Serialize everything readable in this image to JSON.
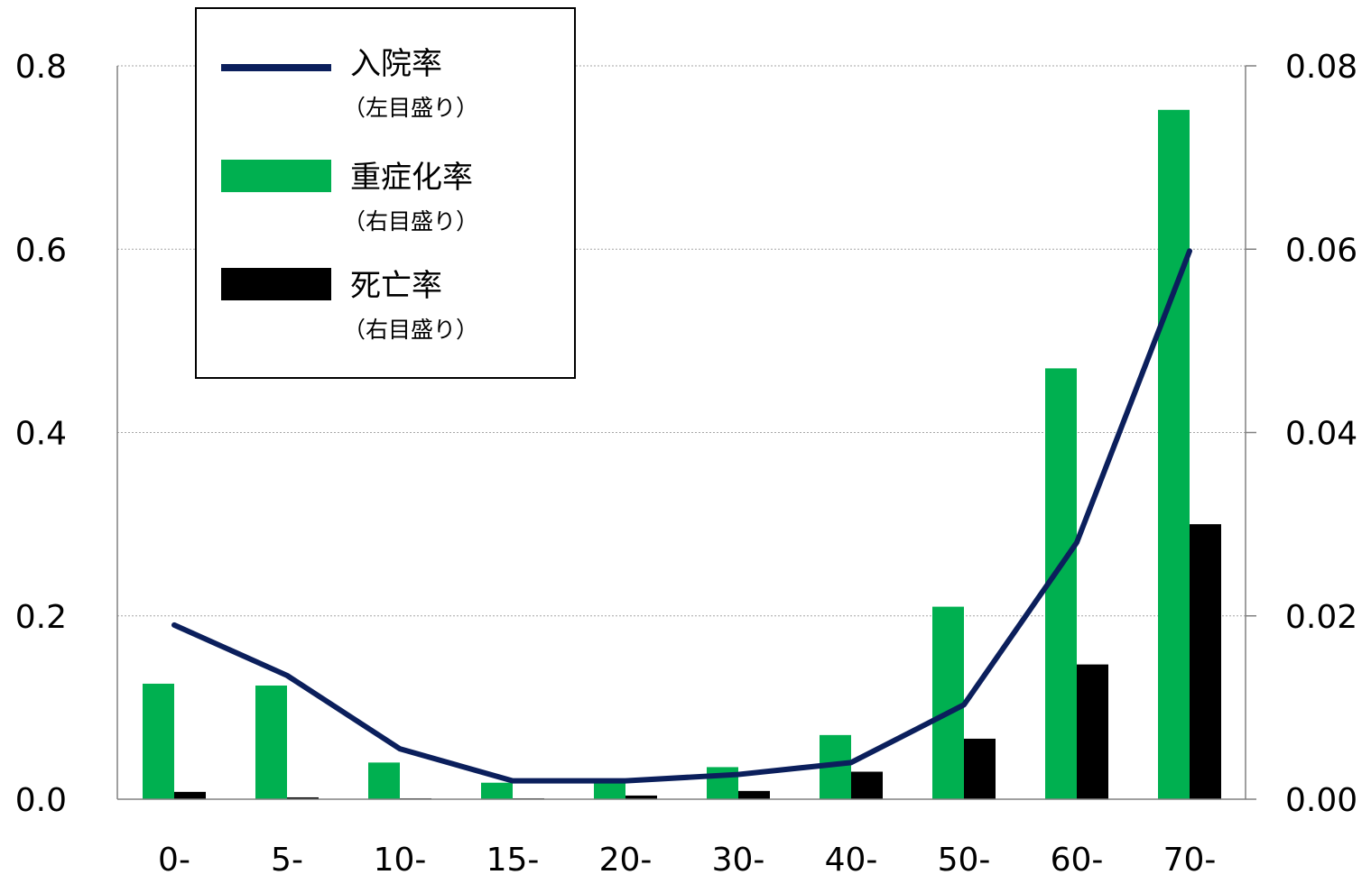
{
  "chart_data": {
    "type": "bar",
    "categories": [
      "0-",
      "5-",
      "10-",
      "15-",
      "20-",
      "30-",
      "40-",
      "50-",
      "60-",
      "70-"
    ],
    "series": [
      {
        "name": "入院率",
        "note": "（左目盛り）",
        "kind": "line",
        "axis": "left",
        "color": "#0b1f5c",
        "values": [
          0.19,
          0.135,
          0.055,
          0.02,
          0.02,
          0.027,
          0.04,
          0.103,
          0.28,
          0.598
        ]
      },
      {
        "name": "重症化率",
        "note": "（右目盛り）",
        "kind": "bar",
        "axis": "right",
        "color": "#00b050",
        "values": [
          0.0126,
          0.0124,
          0.004,
          0.0018,
          0.0021,
          0.0035,
          0.007,
          0.021,
          0.047,
          0.0752
        ]
      },
      {
        "name": "死亡率",
        "note": "（右目盛り）",
        "kind": "bar",
        "axis": "right",
        "color": "#000000",
        "values": [
          0.0008,
          0.0002,
          0.0001,
          0.0001,
          0.0004,
          0.0009,
          0.003,
          0.0066,
          0.0147,
          0.03
        ]
      }
    ],
    "left_axis": {
      "ylim": [
        0,
        0.8
      ],
      "ticks": [
        "0.0",
        "0.2",
        "0.4",
        "0.6",
        "0.8"
      ]
    },
    "right_axis": {
      "ylim": [
        0,
        0.08
      ],
      "ticks": [
        "0.00",
        "0.02",
        "0.04",
        "0.06",
        "0.08"
      ]
    },
    "grid": true,
    "legend_position": "top-left"
  }
}
